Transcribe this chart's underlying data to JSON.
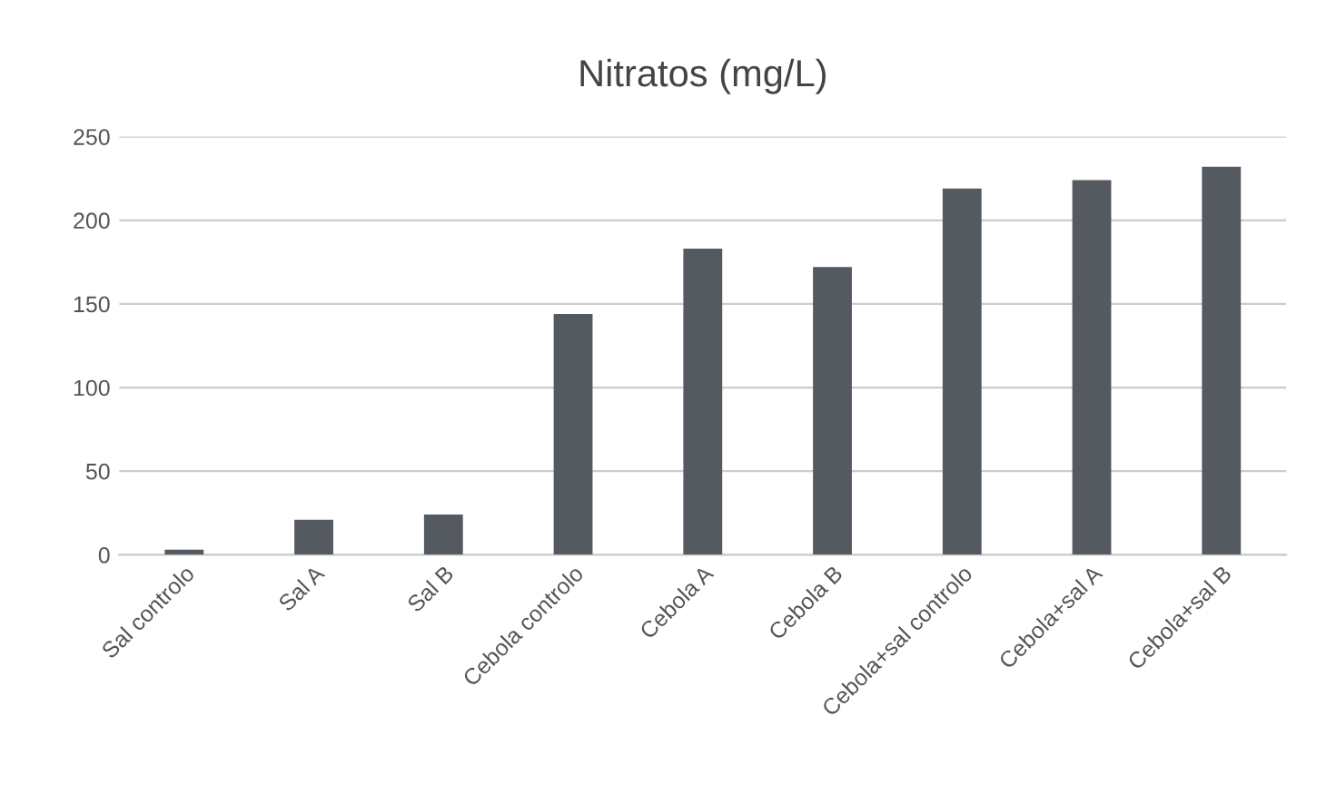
{
  "chart_data": {
    "type": "bar",
    "title": "Nitratos (mg/L)",
    "categories": [
      "Sal controlo",
      "Sal A",
      "Sal B",
      "Cebola controlo",
      "Cebola A",
      "Cebola B",
      "Cebola+sal controlo",
      "Cebola+sal A",
      "Cebola+sal B"
    ],
    "values": [
      3,
      21,
      24,
      144,
      183,
      172,
      219,
      224,
      232
    ],
    "color": "#555a60",
    "ylim": [
      0,
      250
    ],
    "yticks": [
      0,
      50,
      100,
      150,
      200,
      250
    ],
    "grid": "y"
  }
}
